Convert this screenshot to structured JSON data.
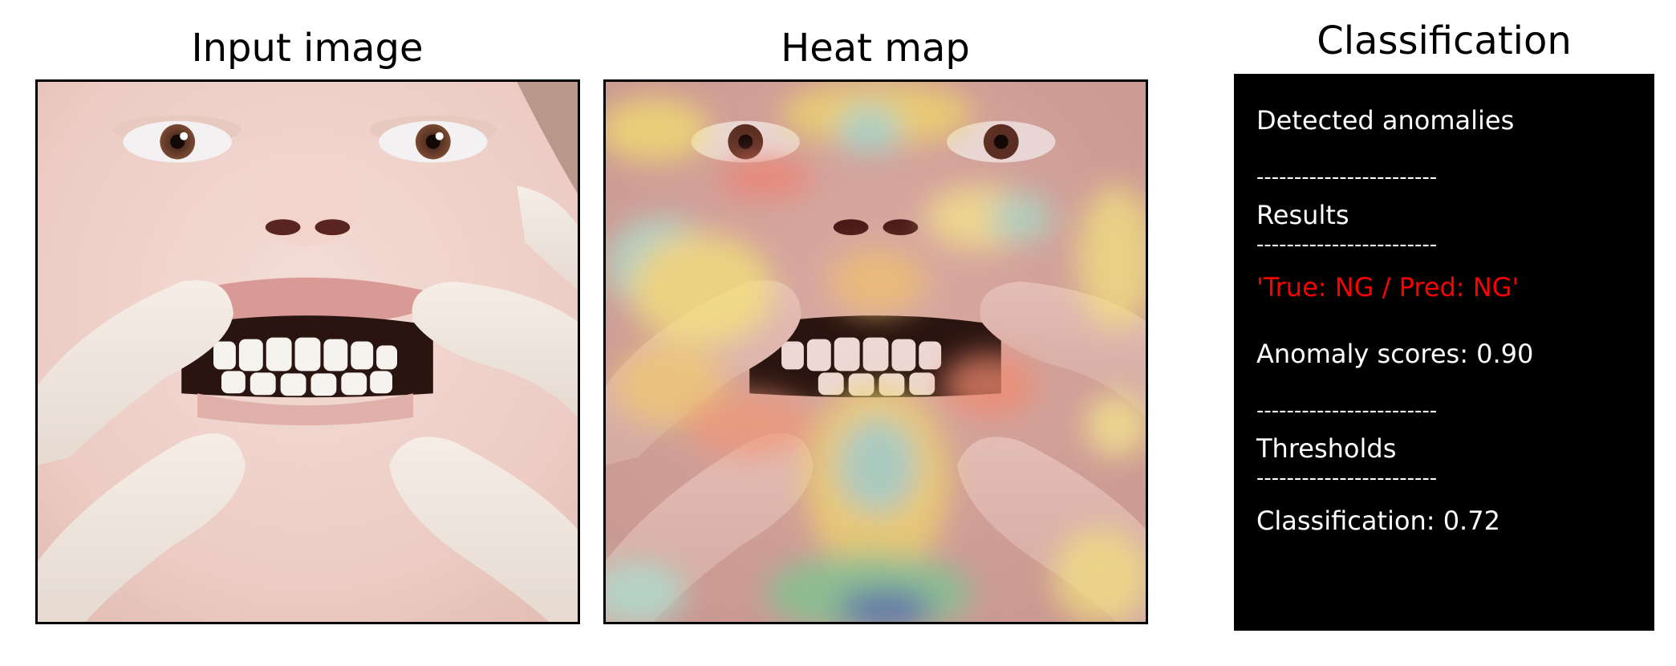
{
  "panels": {
    "input": {
      "title": "Input image"
    },
    "heatmap": {
      "title": "Heat map"
    },
    "classification": {
      "title": "Classification",
      "lines": {
        "detected": "Detected anomalies",
        "sep1": "------------------------",
        "results_label": "Results",
        "sep2": "------------------------",
        "verdict": "'True: NG / Pred: NG'",
        "score": "Anomaly scores: 0.90",
        "sep3": "------------------------",
        "thresholds_label": "Thresholds",
        "sep4": "------------------------",
        "threshold_value": "Classification: 0.72"
      },
      "verdict_color": "#ff0000"
    }
  }
}
